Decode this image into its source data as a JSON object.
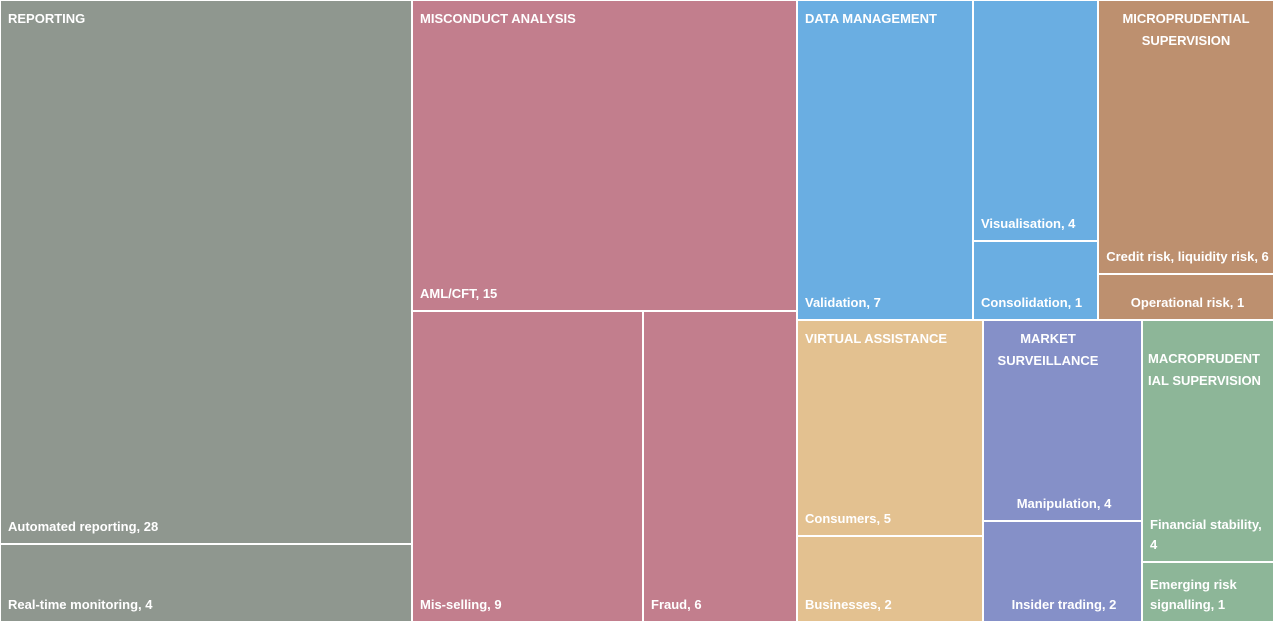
{
  "chart_data": {
    "type": "treemap",
    "groups": [
      {
        "name": "REPORTING",
        "color": "#8f978f",
        "items": [
          {
            "label": "Automated reporting, 28",
            "value": 28
          },
          {
            "label": "Real-time monitoring, 4",
            "value": 4
          }
        ]
      },
      {
        "name": "MISCONDUCT ANALYSIS",
        "color": "#c27e8d",
        "items": [
          {
            "label": "AML/CFT, 15",
            "value": 15
          },
          {
            "label": "Mis-selling, 9",
            "value": 9
          },
          {
            "label": "Fraud, 6",
            "value": 6
          }
        ]
      },
      {
        "name": "DATA MANAGEMENT",
        "color": "#6aaee2",
        "items": [
          {
            "label": "Validation, 7",
            "value": 7
          },
          {
            "label": "Visualisation, 4",
            "value": 4
          },
          {
            "label": "Consolidation, 1",
            "value": 1
          }
        ]
      },
      {
        "name": "MICROPRUDENTIAL SUPERVISION",
        "display": "MICROPRUDENTIAL\nSUPERVISION",
        "color": "#bd906f",
        "items": [
          {
            "label": "Credit risk, liquidity risk, 6",
            "value": 6
          },
          {
            "label": "Operational risk, 1",
            "value": 1
          }
        ]
      },
      {
        "name": "VIRTUAL ASSISTANCE",
        "color": "#e3c190",
        "items": [
          {
            "label": "Consumers, 5",
            "value": 5
          },
          {
            "label": "Businesses, 2",
            "value": 2
          }
        ]
      },
      {
        "name": "MARKET SURVEILLANCE",
        "display": "MARKET\nSURVEILLANCE",
        "color": "#8590c8",
        "items": [
          {
            "label": "Manipulation, 4",
            "value": 4
          },
          {
            "label": "Insider trading, 2",
            "value": 2
          }
        ]
      },
      {
        "name": "MACROPRUDENTIAL SUPERVISION",
        "display": "MACROPRUDENT\nIAL SUPERVISION",
        "color": "#8db698",
        "items": [
          {
            "label": "Financial stability, 4",
            "value": 4
          },
          {
            "label": "Emerging risk signalling, 1",
            "value": 1
          }
        ]
      }
    ]
  }
}
